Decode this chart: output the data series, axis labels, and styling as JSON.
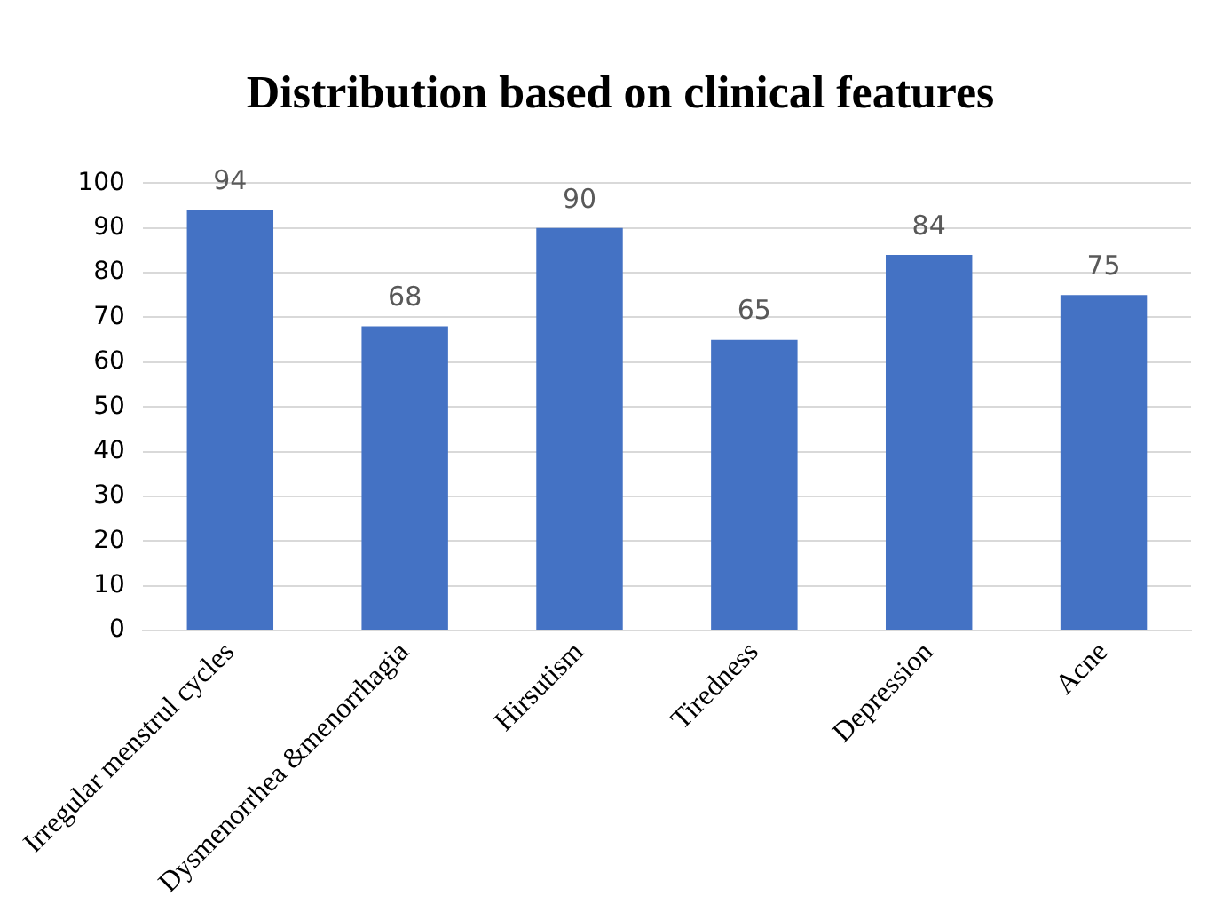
{
  "chart_data": {
    "type": "bar",
    "title": "Distribution based on clinical features",
    "categories": [
      "Irregular menstrul cycles",
      "Dysmenorrhea &menorrhagia",
      "Hirsutism",
      "Tiredness",
      "Depression",
      "Acne"
    ],
    "values": [
      94,
      68,
      90,
      65,
      84,
      75
    ],
    "color": "#4472c4",
    "ylim": [
      0,
      100
    ],
    "yticks": [
      0,
      10,
      20,
      30,
      40,
      50,
      60,
      70,
      80,
      90,
      100
    ],
    "grid": "y",
    "data_labels": true
  }
}
